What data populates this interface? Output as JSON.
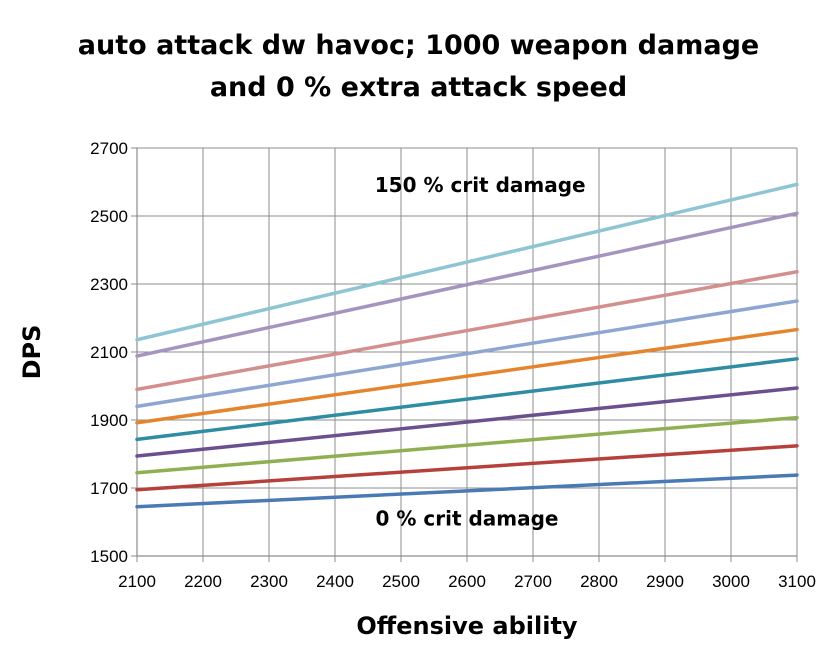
{
  "chart_data": {
    "type": "line",
    "title": [
      "auto attack dw havoc; 1000 weapon damage",
      "and 0 % extra attack speed"
    ],
    "xlabel": "Offensive ability",
    "ylabel": "DPS",
    "xlim": [
      2100,
      3100
    ],
    "ylim": [
      1500,
      2700
    ],
    "x_ticks": [
      2100,
      2200,
      2300,
      2400,
      2500,
      2600,
      2700,
      2800,
      2900,
      3000,
      3100
    ],
    "y_ticks": [
      1500,
      1700,
      1900,
      2100,
      2300,
      2500,
      2700
    ],
    "grid": true,
    "x": [
      2100,
      3100
    ],
    "series": [
      {
        "color": "#4a7ab5",
        "values": [
          1645,
          1738
        ]
      },
      {
        "color": "#b6413c",
        "values": [
          1695,
          1824
        ]
      },
      {
        "color": "#8fb051",
        "values": [
          1745,
          1907
        ]
      },
      {
        "color": "#6b4f8f",
        "values": [
          1794,
          1994
        ]
      },
      {
        "color": "#2e8ca3",
        "values": [
          1843,
          2080
        ]
      },
      {
        "color": "#e4852d",
        "values": [
          1892,
          2166
        ]
      },
      {
        "color": "#8fa6d2",
        "values": [
          1940,
          2250
        ]
      },
      {
        "color": "#d38f8d",
        "values": [
          1990,
          2336
        ]
      },
      {
        "color": "#a694c0",
        "values": [
          2088,
          2508
        ]
      },
      {
        "color": "#8ec5d5",
        "values": [
          2136,
          2593
        ]
      }
    ],
    "annotations": [
      {
        "text": "150 % crit damage",
        "x": 2620,
        "y": 2570
      },
      {
        "text": "0 % crit damage",
        "x": 2600,
        "y": 1590
      }
    ]
  }
}
